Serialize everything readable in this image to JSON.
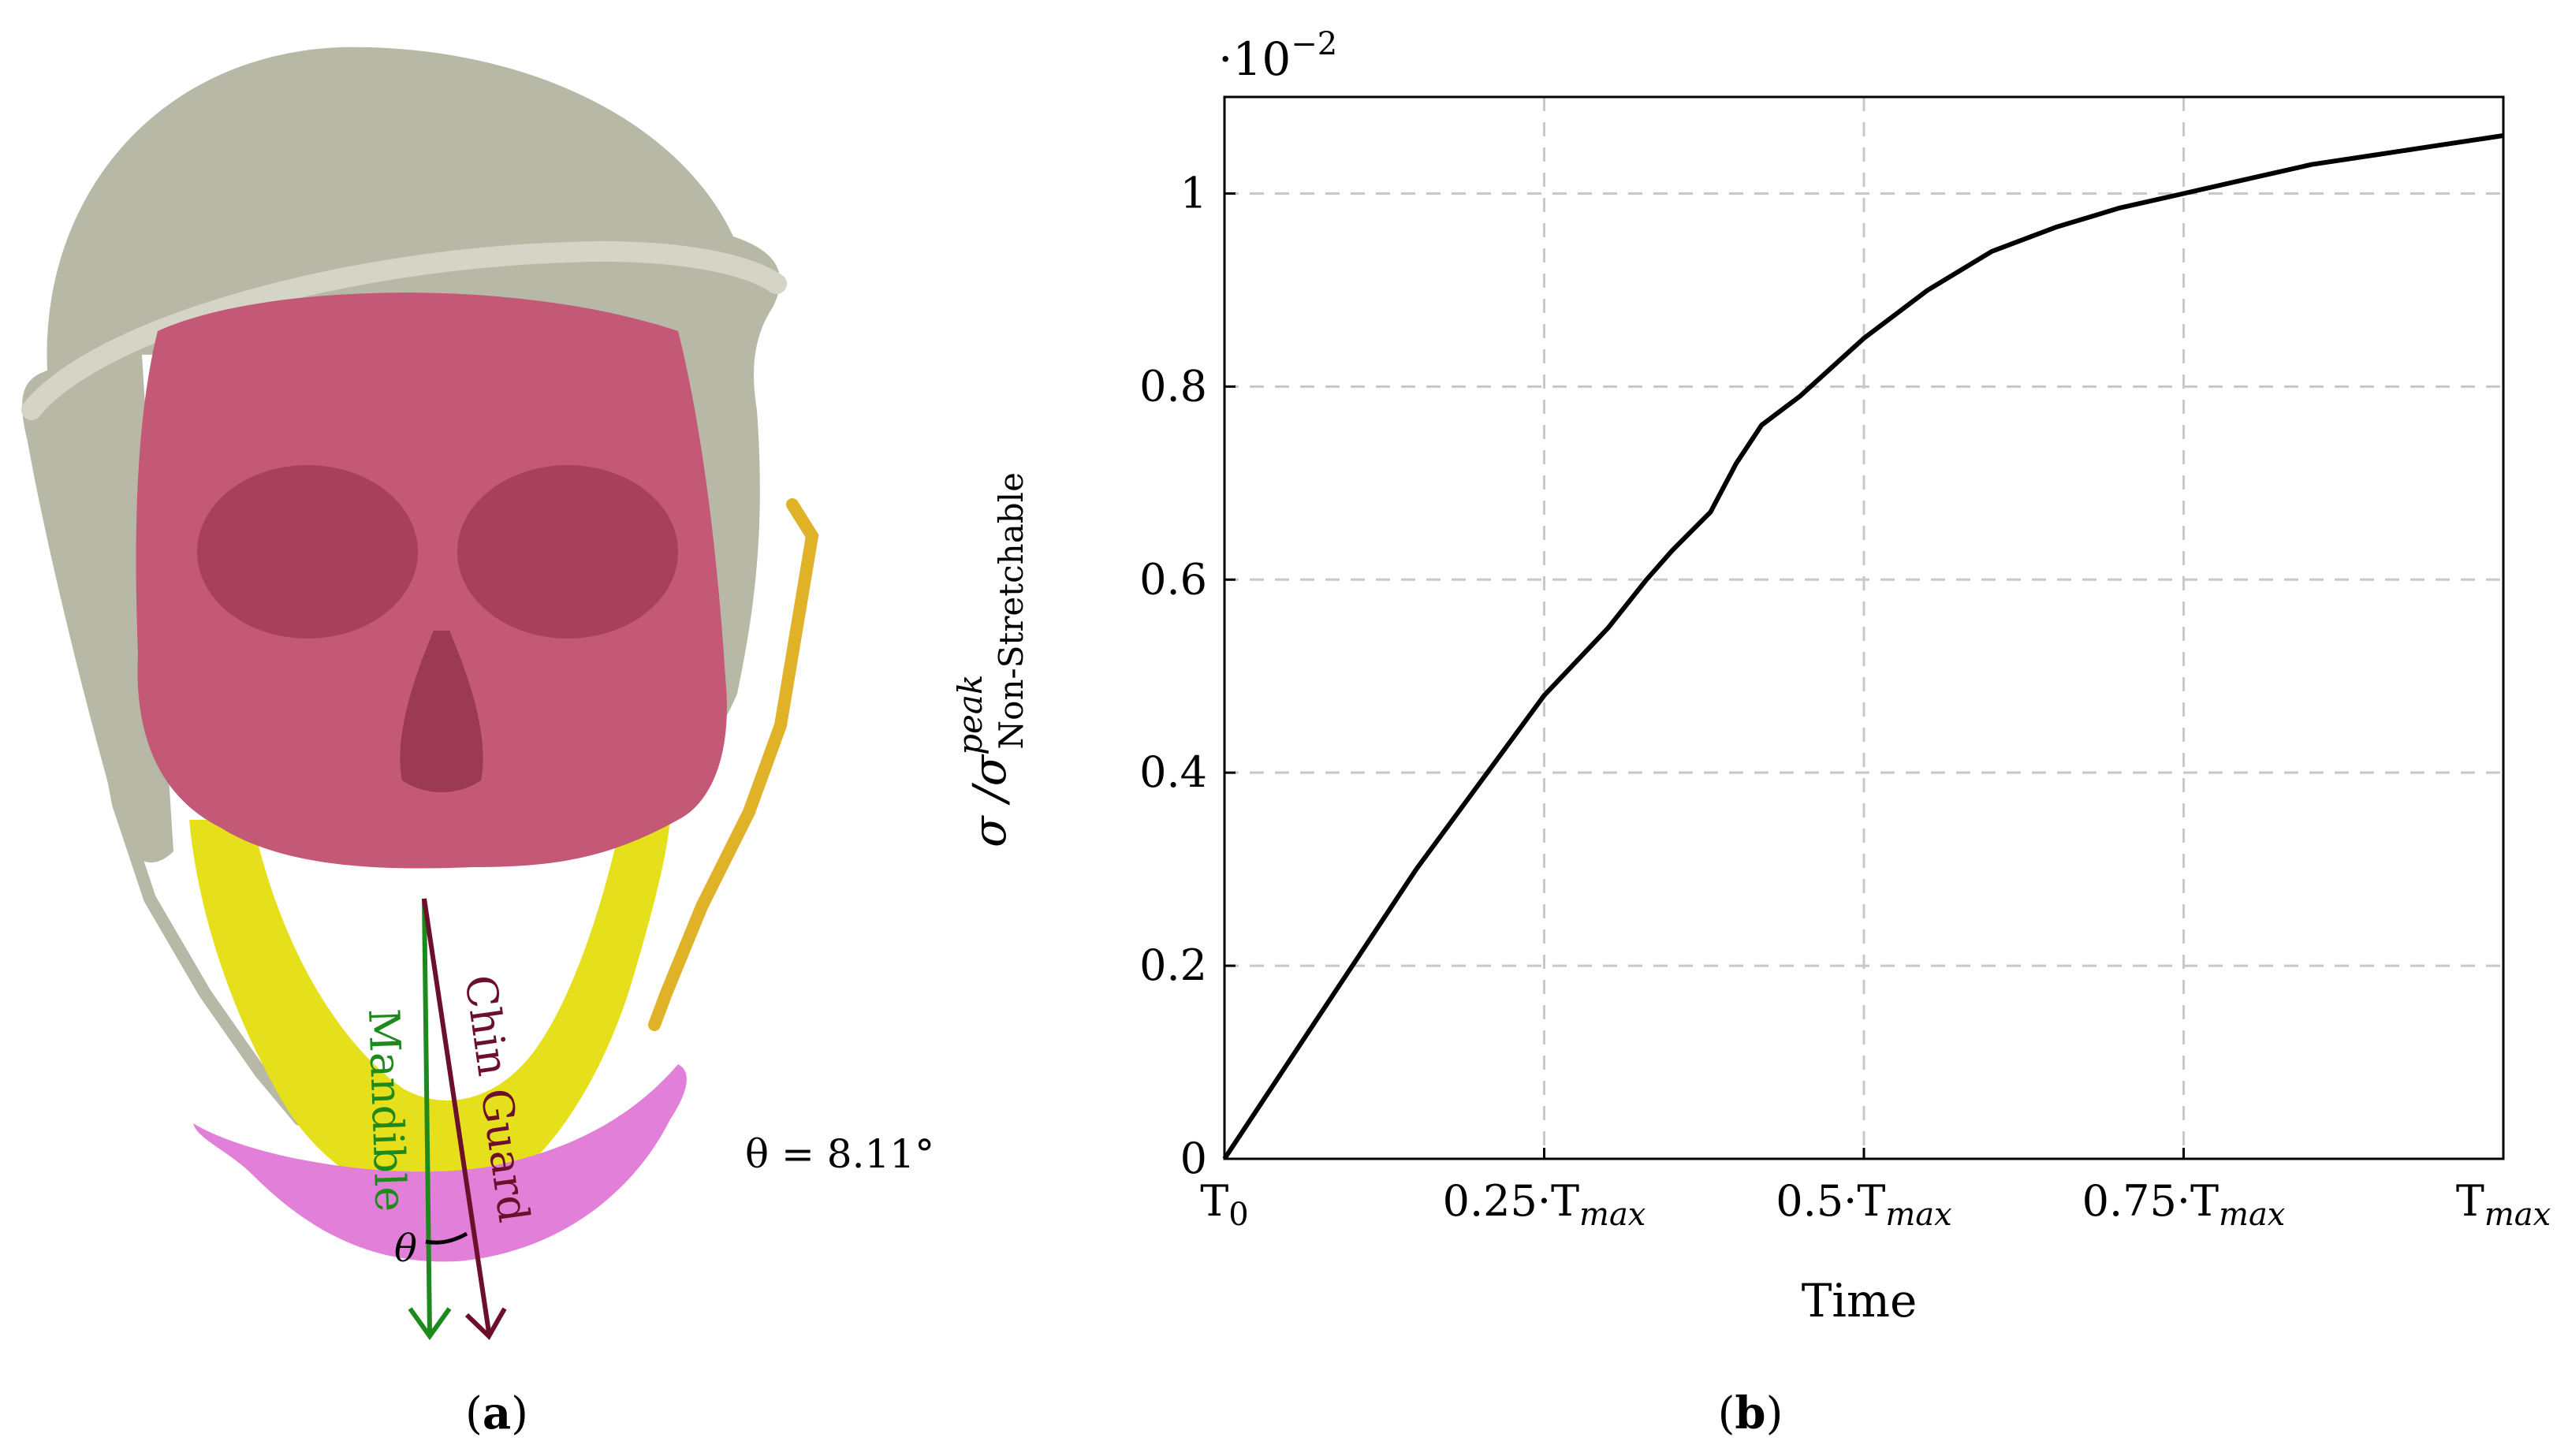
{
  "panel_a": {
    "caption_letter": "a",
    "theta_label": "θ = 8.11°",
    "theta_symbol": "θ",
    "mandible_label": "Mandible",
    "chin_guard_label": "Chin Guard",
    "colors": {
      "helmet": "#b7b8a6",
      "skull": "#c35877",
      "mandible": "#e6e01c",
      "chin_guard": "#e27fd8",
      "strap_right": "#e0b227",
      "mandible_arrow": "#1e8a1e",
      "chin_guard_arrow": "#6b0f2a"
    }
  },
  "panel_b": {
    "caption_letter": "b",
    "chart_data": {
      "type": "line",
      "xlabel": "Time",
      "ylabel": "σ /σ",
      "ylabel_sup": "peak",
      "ylabel_sub": "Non-Stretchable",
      "y_scale_label": "·10",
      "y_scale_exponent": "−2",
      "xlim": [
        0,
        1
      ],
      "ylim": [
        0,
        1.1
      ],
      "grid": true,
      "x_ticks": [
        {
          "value": 0,
          "label": "T",
          "sub": "0"
        },
        {
          "value": 0.25,
          "label": "0.25·T",
          "sub": "max"
        },
        {
          "value": 0.5,
          "label": "0.5·T",
          "sub": "max"
        },
        {
          "value": 0.75,
          "label": "0.75·T",
          "sub": "max"
        },
        {
          "value": 1,
          "label": "T",
          "sub": "max"
        }
      ],
      "y_ticks": [
        {
          "value": 0,
          "label": "0"
        },
        {
          "value": 0.2,
          "label": "0.2"
        },
        {
          "value": 0.4,
          "label": "0.4"
        },
        {
          "value": 0.6,
          "label": "0.6"
        },
        {
          "value": 0.8,
          "label": "0.8"
        },
        {
          "value": 1.0,
          "label": "1"
        }
      ],
      "series": [
        {
          "color": "#000000",
          "x": [
            0,
            0.05,
            0.1,
            0.15,
            0.2,
            0.25,
            0.3,
            0.33,
            0.35,
            0.38,
            0.4,
            0.42,
            0.45,
            0.5,
            0.55,
            0.6,
            0.62,
            0.65,
            0.7,
            0.75,
            0.8,
            0.85,
            0.9,
            0.95,
            1.0
          ],
          "y": [
            0,
            0.1,
            0.2,
            0.3,
            0.39,
            0.48,
            0.55,
            0.6,
            0.63,
            0.67,
            0.72,
            0.76,
            0.79,
            0.85,
            0.9,
            0.94,
            0.95,
            0.965,
            0.985,
            1.0,
            1.015,
            1.03,
            1.04,
            1.05,
            1.06
          ]
        }
      ]
    }
  }
}
